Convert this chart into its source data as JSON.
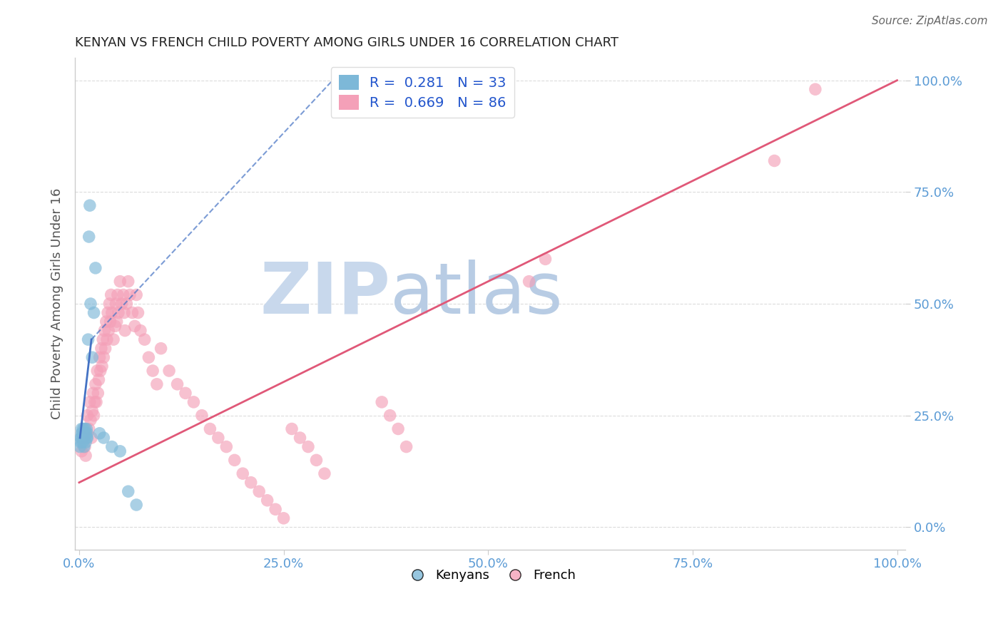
{
  "title": "KENYAN VS FRENCH CHILD POVERTY AMONG GIRLS UNDER 16 CORRELATION CHART",
  "source": "Source: ZipAtlas.com",
  "ylabel": "Child Poverty Among Girls Under 16",
  "kenyan_R": 0.281,
  "kenyan_N": 33,
  "french_R": 0.669,
  "french_N": 86,
  "background_color": "#ffffff",
  "grid_color": "#cccccc",
  "watermark_zip": "ZIP",
  "watermark_atlas": "atlas",
  "watermark_color_zip": "#c8d8ec",
  "watermark_color_atlas": "#b8cce4",
  "kenyan_color": "#7db8d8",
  "french_color": "#f4a0b8",
  "kenyan_line_color": "#4472c4",
  "french_line_color": "#e05878",
  "tick_color": "#5b9bd5",
  "title_color": "#222222",
  "ylabel_color": "#555555",
  "legend_text_color": "#2255cc",
  "axis_color": "#cccccc",
  "kenyan_x": [
    0.002,
    0.003,
    0.003,
    0.004,
    0.004,
    0.005,
    0.005,
    0.006,
    0.006,
    0.007,
    0.007,
    0.008,
    0.008,
    0.009,
    0.009,
    0.01,
    0.01,
    0.011,
    0.012,
    0.013,
    0.014,
    0.016,
    0.018,
    0.02,
    0.025,
    0.03,
    0.04,
    0.05,
    0.06,
    0.07,
    0.001,
    0.002,
    0.003
  ],
  "kenyan_y": [
    0.2,
    0.21,
    0.22,
    0.19,
    0.21,
    0.2,
    0.22,
    0.18,
    0.21,
    0.2,
    0.22,
    0.19,
    0.21,
    0.2,
    0.22,
    0.2,
    0.21,
    0.42,
    0.65,
    0.72,
    0.5,
    0.38,
    0.48,
    0.58,
    0.21,
    0.2,
    0.18,
    0.17,
    0.08,
    0.05,
    0.18,
    0.19,
    0.2
  ],
  "french_x": [
    0.003,
    0.005,
    0.007,
    0.008,
    0.01,
    0.012,
    0.013,
    0.014,
    0.015,
    0.016,
    0.017,
    0.018,
    0.019,
    0.02,
    0.021,
    0.022,
    0.023,
    0.024,
    0.025,
    0.026,
    0.027,
    0.028,
    0.029,
    0.03,
    0.031,
    0.032,
    0.033,
    0.034,
    0.035,
    0.036,
    0.037,
    0.038,
    0.039,
    0.04,
    0.042,
    0.044,
    0.045,
    0.046,
    0.047,
    0.048,
    0.05,
    0.052,
    0.054,
    0.055,
    0.056,
    0.058,
    0.06,
    0.062,
    0.065,
    0.068,
    0.07,
    0.072,
    0.075,
    0.08,
    0.085,
    0.09,
    0.095,
    0.1,
    0.11,
    0.12,
    0.13,
    0.14,
    0.15,
    0.16,
    0.17,
    0.18,
    0.19,
    0.2,
    0.21,
    0.22,
    0.23,
    0.24,
    0.25,
    0.26,
    0.27,
    0.28,
    0.29,
    0.3,
    0.37,
    0.38,
    0.39,
    0.4,
    0.55,
    0.57,
    0.85,
    0.9
  ],
  "french_y": [
    0.17,
    0.2,
    0.18,
    0.16,
    0.25,
    0.22,
    0.28,
    0.24,
    0.2,
    0.26,
    0.3,
    0.25,
    0.28,
    0.32,
    0.28,
    0.35,
    0.3,
    0.33,
    0.38,
    0.35,
    0.4,
    0.36,
    0.42,
    0.38,
    0.44,
    0.4,
    0.46,
    0.42,
    0.48,
    0.44,
    0.5,
    0.46,
    0.52,
    0.48,
    0.42,
    0.45,
    0.5,
    0.46,
    0.52,
    0.48,
    0.55,
    0.5,
    0.52,
    0.48,
    0.44,
    0.5,
    0.55,
    0.52,
    0.48,
    0.45,
    0.52,
    0.48,
    0.44,
    0.42,
    0.38,
    0.35,
    0.32,
    0.4,
    0.35,
    0.32,
    0.3,
    0.28,
    0.25,
    0.22,
    0.2,
    0.18,
    0.15,
    0.12,
    0.1,
    0.08,
    0.06,
    0.04,
    0.02,
    0.22,
    0.2,
    0.18,
    0.15,
    0.12,
    0.28,
    0.25,
    0.22,
    0.18,
    0.55,
    0.6,
    0.82,
    0.98
  ],
  "xlim": [
    -0.005,
    1.01
  ],
  "ylim": [
    -0.05,
    1.05
  ],
  "xticks": [
    0.0,
    0.25,
    0.5,
    0.75,
    1.0
  ],
  "yticks": [
    0.0,
    0.25,
    0.5,
    0.75,
    1.0
  ],
  "xticklabels": [
    "0.0%",
    "25.0%",
    "50.0%",
    "75.0%",
    "100.0%"
  ],
  "yticklabels": [
    "0.0%",
    "25.0%",
    "50.0%",
    "75.0%",
    "100.0%"
  ]
}
